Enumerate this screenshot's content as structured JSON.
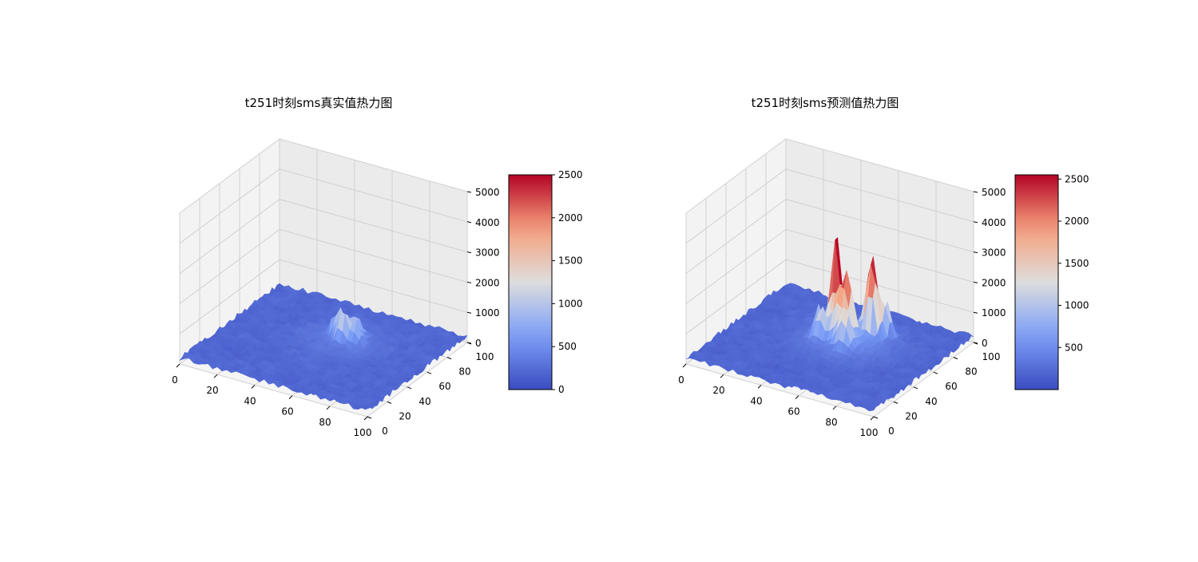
{
  "chart_data": [
    {
      "type": "surface",
      "title": "t251时刻sms真实值热力图",
      "colormap": "coolwarm",
      "x_ticks": [
        "0",
        "20",
        "40",
        "60",
        "80",
        "100"
      ],
      "y_ticks": [
        "0",
        "20",
        "40",
        "60",
        "80",
        "100"
      ],
      "z_ticks": [
        "0",
        "1000",
        "2000",
        "3000",
        "4000",
        "5000"
      ],
      "xlim": [
        0,
        100
      ],
      "ylim": [
        0,
        100
      ],
      "zlim": [
        0,
        5000
      ],
      "colorbar_ticks": [
        "0",
        "500",
        "1000",
        "1500",
        "2000",
        "2500"
      ],
      "colorbar_range": [
        0,
        2500
      ],
      "peaks": [
        {
          "x": 52,
          "y": 62,
          "z": 900
        },
        {
          "x": 56,
          "y": 58,
          "z": 1050
        },
        {
          "x": 58,
          "y": 66,
          "z": 700
        },
        {
          "x": 48,
          "y": 64,
          "z": 650
        },
        {
          "x": 62,
          "y": 60,
          "z": 600
        }
      ]
    },
    {
      "type": "surface",
      "title": "t251时刻sms预测值热力图",
      "colormap": "coolwarm",
      "x_ticks": [
        "0",
        "20",
        "40",
        "60",
        "80",
        "100"
      ],
      "y_ticks": [
        "0",
        "20",
        "40",
        "60",
        "80",
        "100"
      ],
      "z_ticks": [
        "0",
        "1000",
        "2000",
        "3000",
        "4000",
        "5000"
      ],
      "xlim": [
        0,
        100
      ],
      "ylim": [
        0,
        100
      ],
      "zlim": [
        0,
        5000
      ],
      "colorbar_ticks": [
        "500",
        "1000",
        "1500",
        "2000",
        "2500"
      ],
      "colorbar_range": [
        0,
        2550
      ],
      "peaks": [
        {
          "x": 48,
          "y": 62,
          "z": 2200
        },
        {
          "x": 47,
          "y": 60,
          "z": 1900
        },
        {
          "x": 62,
          "y": 70,
          "z": 2400
        },
        {
          "x": 64,
          "y": 66,
          "z": 1500
        },
        {
          "x": 56,
          "y": 58,
          "z": 1700
        },
        {
          "x": 52,
          "y": 55,
          "z": 1400
        },
        {
          "x": 68,
          "y": 74,
          "z": 1200
        },
        {
          "x": 44,
          "y": 52,
          "z": 1000
        },
        {
          "x": 58,
          "y": 50,
          "z": 1100
        },
        {
          "x": 40,
          "y": 58,
          "z": 800
        }
      ]
    }
  ]
}
